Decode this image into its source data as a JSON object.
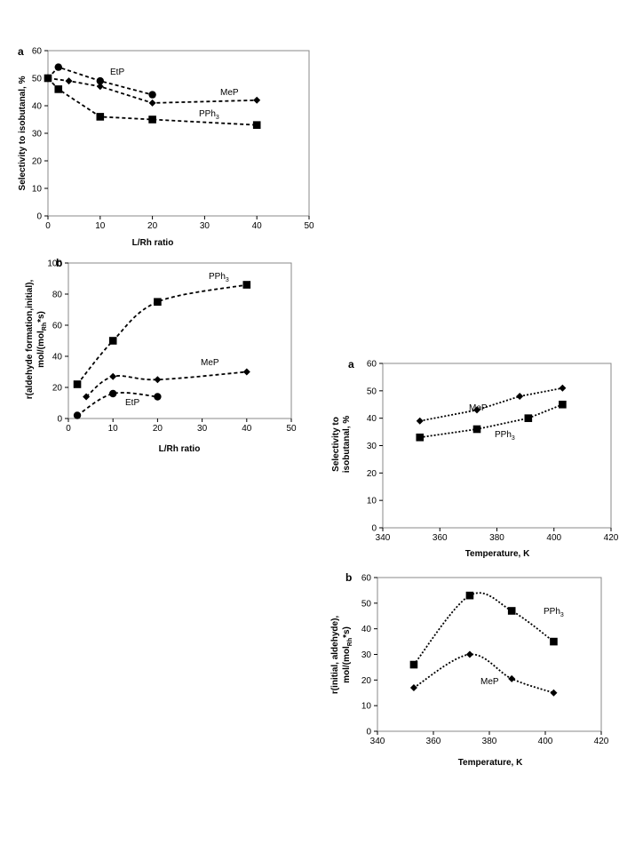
{
  "chart_data": [
    {
      "panel": "a",
      "type": "line",
      "xlabel": "L/Rh ratio",
      "ylabel": "Selectivity to isobutanal, %",
      "xlim": [
        0,
        50
      ],
      "ylim": [
        0,
        60
      ],
      "xticks": [
        0,
        10,
        20,
        30,
        40,
        50
      ],
      "yticks": [
        0,
        10,
        20,
        30,
        40,
        50,
        60
      ],
      "grid": false,
      "series": [
        {
          "name": "EtP",
          "marker": "circle",
          "x": [
            0,
            2,
            10,
            20
          ],
          "y": [
            50,
            54,
            49,
            44
          ]
        },
        {
          "name": "MeP",
          "marker": "diamond",
          "x": [
            0,
            4,
            10,
            20,
            40
          ],
          "y": [
            50,
            49,
            47,
            41,
            42
          ]
        },
        {
          "name": "PPh3",
          "marker": "square",
          "x": [
            0,
            2,
            10,
            20,
            40
          ],
          "y": [
            50,
            46,
            36,
            35,
            33
          ]
        }
      ]
    },
    {
      "panel": "b",
      "type": "line",
      "xlabel": "L/Rh ratio",
      "ylabel": "r(aldehyde formation,initial), mol/(molRh*s)",
      "xlim": [
        0,
        50
      ],
      "ylim": [
        0,
        100
      ],
      "xticks": [
        0,
        10,
        20,
        30,
        40,
        50
      ],
      "yticks": [
        0,
        20,
        40,
        60,
        80,
        100
      ],
      "grid": false,
      "series": [
        {
          "name": "PPh3",
          "marker": "square",
          "x": [
            2,
            10,
            20,
            40
          ],
          "y": [
            22,
            50,
            75,
            86
          ]
        },
        {
          "name": "MeP",
          "marker": "diamond",
          "x": [
            4,
            10,
            20,
            40
          ],
          "y": [
            14,
            27,
            25,
            30
          ]
        },
        {
          "name": "EtP",
          "marker": "circle",
          "x": [
            2,
            10,
            20
          ],
          "y": [
            2,
            16,
            14
          ]
        }
      ]
    },
    {
      "panel": "a",
      "type": "line",
      "xlabel": "Temperature, K",
      "ylabel": "Selectivity to isobutanal, %",
      "xlim": [
        340,
        420
      ],
      "ylim": [
        0,
        60
      ],
      "xticks": [
        340,
        360,
        380,
        400,
        420
      ],
      "yticks": [
        0,
        10,
        20,
        30,
        40,
        50,
        60
      ],
      "grid": false,
      "series": [
        {
          "name": "MeP",
          "marker": "diamond",
          "x": [
            353,
            373,
            388,
            403
          ],
          "y": [
            39,
            43,
            48,
            51
          ]
        },
        {
          "name": "PPh3",
          "marker": "square",
          "x": [
            353,
            373,
            391,
            403
          ],
          "y": [
            33,
            36,
            40,
            45
          ]
        }
      ]
    },
    {
      "panel": "b",
      "type": "line",
      "xlabel": "Temperature, K",
      "ylabel": "r(initial, aldehyde), mol/(molRh*s)",
      "xlim": [
        340,
        420
      ],
      "ylim": [
        0,
        60
      ],
      "xticks": [
        340,
        360,
        380,
        400,
        420
      ],
      "yticks": [
        0,
        10,
        20,
        30,
        40,
        50,
        60
      ],
      "grid": false,
      "series": [
        {
          "name": "PPh3",
          "marker": "square",
          "x": [
            353,
            373,
            388,
            403
          ],
          "y": [
            26,
            53,
            47,
            35
          ]
        },
        {
          "name": "MeP",
          "marker": "diamond",
          "x": [
            353,
            373,
            388,
            403
          ],
          "y": [
            17,
            30,
            20.5,
            15
          ]
        }
      ]
    }
  ],
  "labels": {
    "c0": {
      "panel": "a",
      "ylabel": "Selectivity to isobutanal, %",
      "xlabel": "L/Rh ratio",
      "etp": "EtP",
      "mep": "MeP",
      "pph": "PPh",
      "pph_sub": "3"
    },
    "c1": {
      "panel": "b",
      "ylabel_1": "r(aldehyde formation,initial),",
      "ylabel_2": "mol/(mol",
      "ylabel_2_sub": "Rh",
      "ylabel_2_end": "*s)",
      "xlabel": "L/Rh ratio",
      "etp": "EtP",
      "mep": "MeP",
      "pph": "PPh",
      "pph_sub": "3"
    },
    "c2": {
      "panel": "a",
      "ylabel_1": "Selectivity to",
      "ylabel_2": "isobutanal, %",
      "xlabel": "Temperature, K",
      "mep": "MeP",
      "pph": "PPh",
      "pph_sub": "3"
    },
    "c3": {
      "panel": "b",
      "ylabel_1": "r(initial, aldehyde),",
      "ylabel_2": "mol/(mol",
      "ylabel_2_sub": "Rh",
      "ylabel_2_end": "*s)",
      "xlabel": "Temperature, K",
      "mep": "MeP",
      "pph": "PPh",
      "pph_sub": "3"
    }
  }
}
